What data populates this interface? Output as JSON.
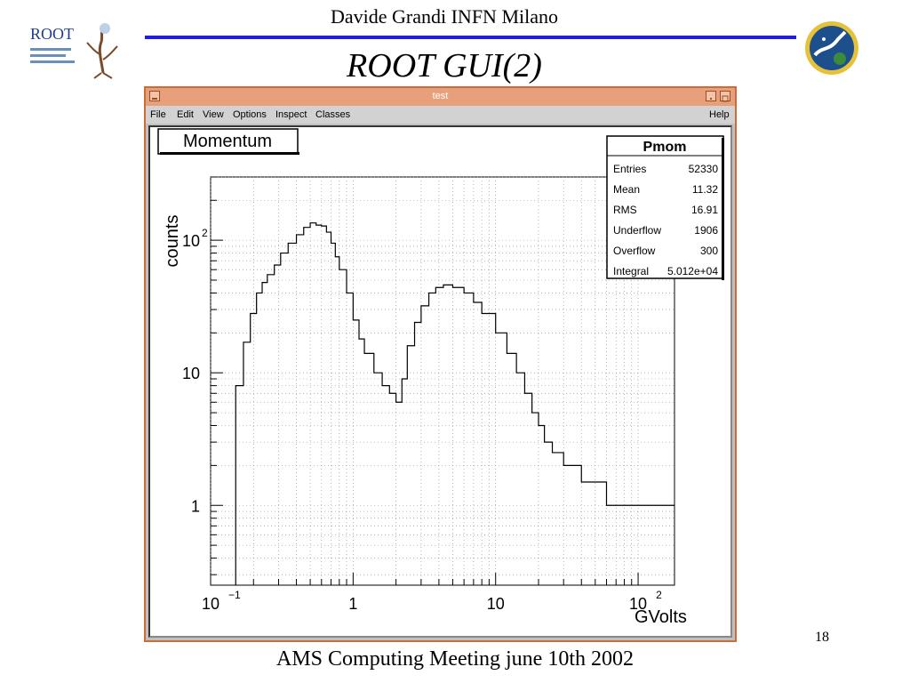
{
  "slide": {
    "author": "Davide Grandi INFN Milano",
    "title": "ROOT GUI(2)",
    "footer": "AMS Computing Meeting june 10th 2002",
    "page_number": "18",
    "colors": {
      "rule": "#1f1fd8"
    }
  },
  "window": {
    "title": "test",
    "menu": [
      "File",
      "Edit",
      "View",
      "Options",
      "Inspect",
      "Classes"
    ],
    "help": "Help",
    "colors": {
      "titlebar": "#e8a07c",
      "frame": "#c96d3a"
    }
  },
  "histogram": {
    "name": "Momentum",
    "stats_title": "Pmom",
    "stats": [
      {
        "label": "Entries",
        "value": "52330"
      },
      {
        "label": "Mean",
        "value": "11.32"
      },
      {
        "label": "RMS",
        "value": "16.91"
      },
      {
        "label": "Underflow",
        "value": "1906"
      },
      {
        "label": "Overflow",
        "value": "300"
      },
      {
        "label": "Integral",
        "value": "5.012e+04"
      }
    ]
  },
  "chart_data": {
    "type": "line",
    "xlabel": "GVolts",
    "ylabel": "counts",
    "x_scale": "log",
    "y_scale": "log",
    "xlim": [
      0.1,
      180
    ],
    "ylim": [
      0.25,
      300
    ],
    "grid": true,
    "x_ticks": [
      "10",
      "1",
      "10",
      "10"
    ],
    "x_tick_exponents": [
      "−1",
      "",
      "",
      "2"
    ],
    "y_ticks": [
      "1",
      "10",
      "10"
    ],
    "y_tick_exponents": [
      "",
      "",
      "2"
    ],
    "series": [
      {
        "x": [
          0.15,
          0.17,
          0.19,
          0.21,
          0.23,
          0.25,
          0.28,
          0.31,
          0.35,
          0.4,
          0.45,
          0.5,
          0.55,
          0.6,
          0.65,
          0.7,
          0.75,
          0.8,
          0.9,
          1.0,
          1.1,
          1.2,
          1.4,
          1.6,
          1.8,
          2.0,
          2.2,
          2.4,
          2.7,
          3.0,
          3.4,
          3.8,
          4.3,
          5.0,
          6.0,
          7.0,
          8.0,
          10,
          12,
          14,
          16,
          18,
          20,
          22,
          25,
          30,
          40,
          60,
          100,
          150,
          180
        ],
        "y": [
          8,
          17,
          28,
          40,
          48,
          55,
          65,
          80,
          95,
          110,
          125,
          135,
          130,
          128,
          115,
          95,
          75,
          60,
          40,
          25,
          18,
          14,
          10,
          8,
          7,
          6,
          9,
          16,
          24,
          32,
          40,
          44,
          46,
          44,
          40,
          34,
          28,
          20,
          14,
          10,
          7,
          5,
          4,
          3,
          2.5,
          2,
          1.5,
          1,
          1,
          1,
          1
        ]
      }
    ]
  }
}
